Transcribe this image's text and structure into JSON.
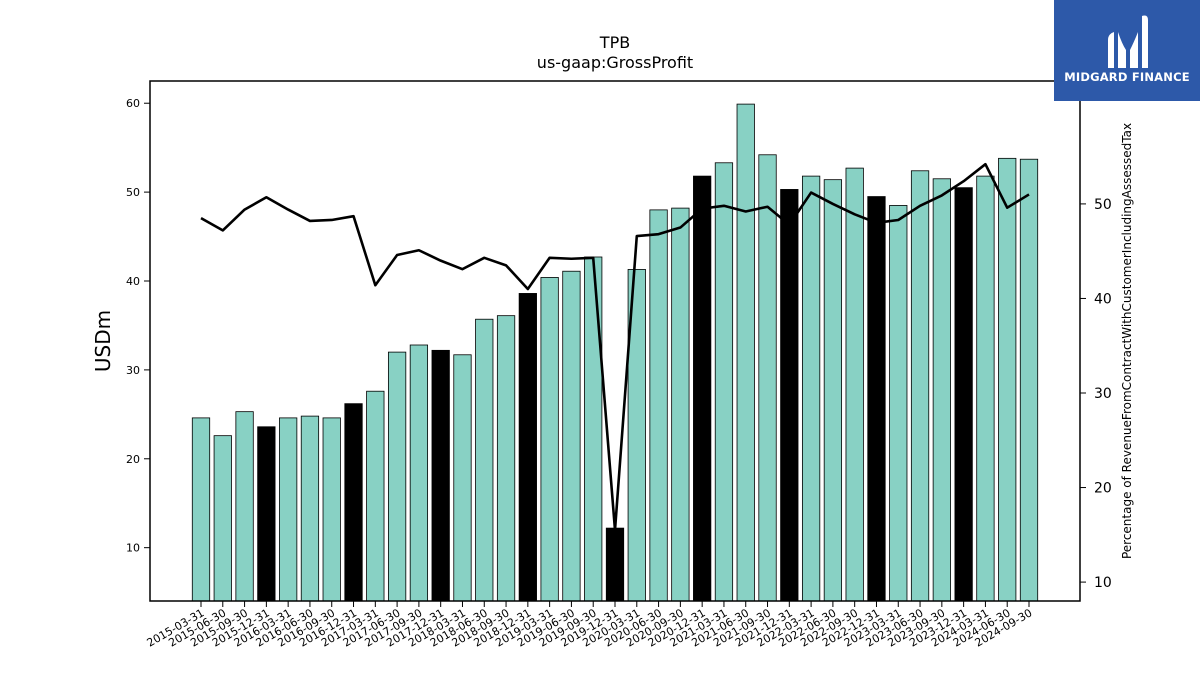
{
  "logo": {
    "text": "MIDGARD FINANCE",
    "color": "#2d59a9"
  },
  "chart_data": {
    "type": "bar",
    "title": "TPB",
    "subtitle": "us-gaap:GrossProfit",
    "ylabel": "USDm",
    "y2label": "Percentage of RevenueFromContractWithCustomerIncludingAssessedTax",
    "ylim": [
      4,
      62.5
    ],
    "y2lim": [
      8,
      63
    ],
    "yticks": [
      10,
      20,
      30,
      40,
      50,
      60
    ],
    "y2ticks": [
      10,
      20,
      30,
      40,
      50
    ],
    "bar_color": "#88d1c4",
    "highlight_color": "#000000",
    "line_color": "#000000",
    "categories": [
      "2015-03-31",
      "2015-06-30",
      "2015-09-30",
      "2015-12-31",
      "2016-03-31",
      "2016-06-30",
      "2016-09-30",
      "2016-12-31",
      "2017-03-31",
      "2017-06-30",
      "2017-09-30",
      "2017-12-31",
      "2018-03-31",
      "2018-06-30",
      "2018-09-30",
      "2018-12-31",
      "2019-03-31",
      "2019-06-30",
      "2019-09-30",
      "2019-12-31",
      "2020-03-31",
      "2020-06-30",
      "2020-09-30",
      "2020-12-31",
      "2021-03-31",
      "2021-06-30",
      "2021-09-30",
      "2021-12-31",
      "2022-03-31",
      "2022-06-30",
      "2022-09-30",
      "2022-12-31",
      "2023-03-31",
      "2023-06-30",
      "2023-09-30",
      "2023-12-31",
      "2024-03-31",
      "2024-06-30",
      "2024-09-30"
    ],
    "series": [
      {
        "name": "",
        "axis": "left",
        "values": [
          24.6,
          22.6,
          25.3,
          23.6,
          24.6,
          24.8,
          24.6,
          26.2,
          27.6,
          32.0,
          32.8,
          32.2,
          31.7,
          35.7,
          36.1,
          38.6,
          40.4,
          41.1,
          42.7,
          12.2,
          41.3,
          48.0,
          48.2,
          51.8,
          53.3,
          59.9,
          54.2,
          50.3,
          51.8,
          51.4,
          52.7,
          49.5,
          48.5,
          52.4,
          51.5,
          50.5,
          51.8,
          53.8,
          53.7
        ],
        "highlight": [
          false,
          false,
          false,
          true,
          false,
          false,
          false,
          true,
          false,
          false,
          false,
          true,
          false,
          false,
          false,
          true,
          false,
          false,
          false,
          true,
          false,
          false,
          false,
          true,
          false,
          false,
          false,
          true,
          false,
          false,
          false,
          true,
          false,
          false,
          false,
          true,
          false,
          false,
          false
        ]
      },
      {
        "name": "",
        "type": "line",
        "axis": "right",
        "values": [
          48.5,
          47.2,
          49.4,
          50.7,
          49.4,
          48.2,
          48.3,
          48.7,
          41.4,
          44.6,
          45.1,
          44.0,
          43.1,
          44.3,
          43.5,
          41.0,
          44.3,
          44.2,
          44.3,
          15.5,
          46.6,
          46.8,
          47.5,
          49.5,
          49.8,
          49.2,
          49.7,
          47.8,
          51.2,
          50.0,
          48.9,
          48.0,
          48.3,
          49.8,
          50.9,
          52.4,
          54.2,
          49.6,
          51.0
        ]
      }
    ]
  }
}
